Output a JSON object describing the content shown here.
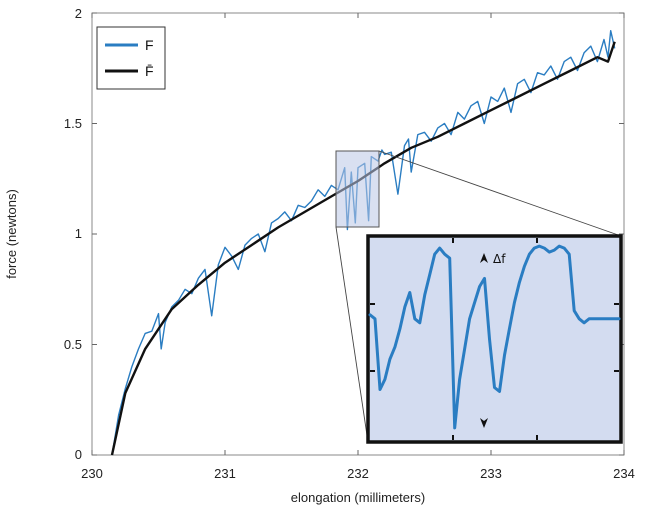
{
  "chart_data": {
    "type": "line",
    "xlabel": "elongation (millimeters)",
    "ylabel": "force (newtons)",
    "xlim": [
      230,
      234
    ],
    "ylim": [
      0,
      2
    ],
    "xticks": [
      "230",
      "231",
      "232",
      "233",
      "234"
    ],
    "yticks": [
      "0",
      "0.5",
      "1",
      "1.5",
      "2"
    ],
    "legend_placement": "top-left",
    "grid": false,
    "series": [
      {
        "name": "F",
        "color": "#2a7dc2",
        "x": [
          230.15,
          230.2,
          230.25,
          230.3,
          230.35,
          230.4,
          230.45,
          230.5,
          230.52,
          230.55,
          230.6,
          230.65,
          230.7,
          230.75,
          230.8,
          230.85,
          230.9,
          230.95,
          231.0,
          231.05,
          231.1,
          231.15,
          231.2,
          231.25,
          231.3,
          231.35,
          231.4,
          231.45,
          231.5,
          231.55,
          231.6,
          231.65,
          231.7,
          231.75,
          231.8,
          231.85,
          231.9,
          231.92,
          231.95,
          231.98,
          232.0,
          232.05,
          232.08,
          232.1,
          232.15,
          232.18,
          232.2,
          232.25,
          232.3,
          232.35,
          232.38,
          232.4,
          232.45,
          232.5,
          232.55,
          232.6,
          232.65,
          232.7,
          232.75,
          232.8,
          232.85,
          232.9,
          232.95,
          233.0,
          233.05,
          233.1,
          233.15,
          233.2,
          233.25,
          233.3,
          233.35,
          233.4,
          233.45,
          233.5,
          233.55,
          233.6,
          233.65,
          233.7,
          233.75,
          233.8,
          233.85,
          233.88,
          233.9,
          233.93
        ],
        "y": [
          0.0,
          0.18,
          0.3,
          0.4,
          0.48,
          0.55,
          0.56,
          0.64,
          0.48,
          0.6,
          0.67,
          0.7,
          0.75,
          0.73,
          0.8,
          0.84,
          0.63,
          0.86,
          0.94,
          0.9,
          0.84,
          0.95,
          0.98,
          1.0,
          0.92,
          1.05,
          1.07,
          1.1,
          1.06,
          1.13,
          1.12,
          1.15,
          1.2,
          1.17,
          1.22,
          1.2,
          1.3,
          1.02,
          1.28,
          1.05,
          1.3,
          1.32,
          1.06,
          1.35,
          1.33,
          1.38,
          1.36,
          1.37,
          1.18,
          1.4,
          1.43,
          1.28,
          1.45,
          1.46,
          1.42,
          1.48,
          1.5,
          1.45,
          1.55,
          1.52,
          1.58,
          1.6,
          1.5,
          1.62,
          1.6,
          1.66,
          1.55,
          1.68,
          1.7,
          1.64,
          1.73,
          1.72,
          1.76,
          1.7,
          1.78,
          1.8,
          1.74,
          1.82,
          1.85,
          1.78,
          1.88,
          1.8,
          1.92,
          1.84
        ]
      },
      {
        "name": "F̄",
        "color": "#111111",
        "x": [
          230.15,
          230.25,
          230.4,
          230.6,
          230.8,
          231.0,
          231.2,
          231.4,
          231.6,
          231.8,
          232.0,
          232.2,
          232.4,
          232.6,
          232.8,
          233.0,
          233.2,
          233.4,
          233.6,
          233.8,
          233.88,
          233.93
        ],
        "y": [
          0.0,
          0.28,
          0.48,
          0.66,
          0.77,
          0.87,
          0.95,
          1.03,
          1.1,
          1.17,
          1.24,
          1.32,
          1.39,
          1.44,
          1.5,
          1.56,
          1.62,
          1.68,
          1.74,
          1.8,
          1.78,
          1.87
        ]
      }
    ],
    "inset": {
      "annotation": "Δf",
      "zoom_range_x": [
        231.92,
        232.18
      ],
      "zoom_range_y": [
        1.02,
        1.37
      ],
      "series": {
        "x": [
          0.0,
          0.02,
          0.04,
          0.06,
          0.08,
          0.1,
          0.12,
          0.14,
          0.16,
          0.18,
          0.2,
          0.22,
          0.24,
          0.26,
          0.28,
          0.3,
          0.32,
          0.34,
          0.36,
          0.38,
          0.4,
          0.42,
          0.44,
          0.46,
          0.48,
          0.5,
          0.52,
          0.54,
          0.56,
          0.58,
          0.6,
          0.62,
          0.64,
          0.66,
          0.68,
          0.7,
          0.72,
          0.74,
          0.76,
          0.78,
          0.8,
          0.82,
          0.84,
          0.86,
          0.88,
          0.9,
          0.92,
          0.94,
          0.96,
          0.98,
          1.0
        ],
        "y": [
          0.62,
          0.6,
          0.25,
          0.3,
          0.4,
          0.46,
          0.55,
          0.66,
          0.73,
          0.6,
          0.58,
          0.72,
          0.82,
          0.92,
          0.95,
          0.92,
          0.9,
          0.06,
          0.3,
          0.45,
          0.6,
          0.68,
          0.76,
          0.8,
          0.5,
          0.26,
          0.24,
          0.42,
          0.55,
          0.68,
          0.78,
          0.86,
          0.92,
          0.95,
          0.96,
          0.95,
          0.93,
          0.94,
          0.96,
          0.95,
          0.92,
          0.64,
          0.6,
          0.58,
          0.6,
          0.6,
          0.6,
          0.6,
          0.6,
          0.6,
          0.6
        ]
      }
    }
  }
}
